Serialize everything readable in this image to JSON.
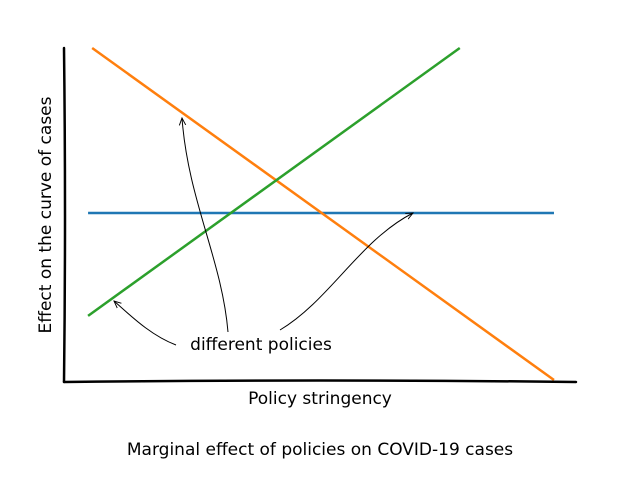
{
  "chart_data": {
    "type": "line",
    "title": "Marginal effect of policies on COVID-19 cases",
    "xlabel": "Policy stringency",
    "ylabel": "Effect on the curve of cases",
    "annotation": "different policies",
    "xlim": [
      0,
      10
    ],
    "ylim": [
      0,
      10
    ],
    "series": [
      {
        "color": "#1f77b4",
        "x": [
          0.47,
          9.57
        ],
        "values": [
          5.06,
          5.06
        ]
      },
      {
        "color": "#ff7f0e",
        "x": [
          0.55,
          9.57
        ],
        "values": [
          10,
          0.06
        ]
      },
      {
        "color": "#2ca02c",
        "x": [
          0.47,
          7.73
        ],
        "values": [
          1.98,
          10
        ]
      }
    ]
  }
}
